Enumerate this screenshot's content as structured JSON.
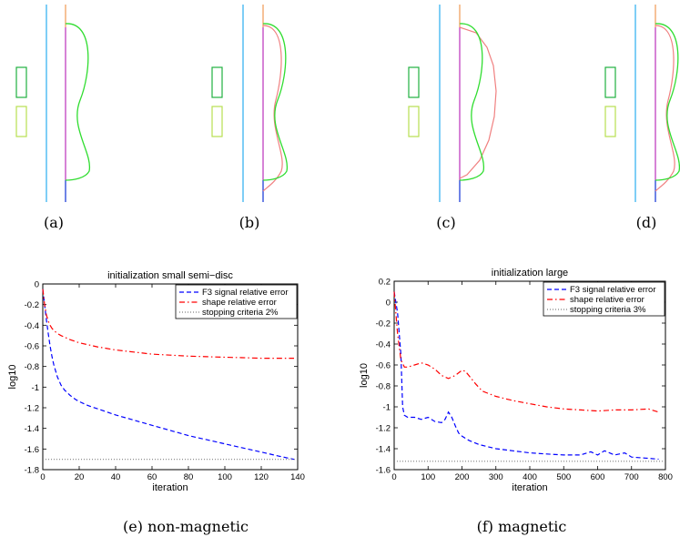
{
  "figure": {
    "panels": [
      {
        "caption": "(a)"
      },
      {
        "caption": "(b)"
      },
      {
        "caption": "(c)"
      },
      {
        "caption": "(d)"
      }
    ],
    "colors": {
      "bar": "#3ab3f0",
      "axis_top": "#f0a060",
      "axis_mid": "#c040c0",
      "axis_bottom": "#2040d8",
      "coil_dark": "#20b040",
      "coil_light": "#b8e050",
      "shape_green": "#30dd30",
      "shape_pink": "#f08080"
    }
  },
  "chart_data": [
    {
      "type": "line",
      "caption": "(e) non-magnetic",
      "title": "initialization small semi−disc",
      "xlabel": "iteration",
      "ylabel": "log10",
      "xlim": [
        0,
        140
      ],
      "ylim": [
        -1.8,
        0
      ],
      "xticks": [
        0,
        20,
        40,
        60,
        80,
        100,
        120,
        140
      ],
      "yticks": [
        0,
        -0.2,
        -0.4,
        -0.6,
        -0.8,
        -1,
        -1.2,
        -1.4,
        -1.6,
        -1.8
      ],
      "ytick_labels": [
        "0",
        "-0.2",
        "-0.4",
        "-0.6",
        "-0.8",
        "-1",
        "-1.2",
        "-1.4",
        "-1.6",
        "-1.8"
      ],
      "legend_position": "top-right",
      "series": [
        {
          "name": "F3 signal relative error",
          "color": "#0000ff",
          "dash": "dashed",
          "x": [
            0,
            1,
            2,
            3,
            4,
            5,
            6,
            8,
            10,
            12,
            15,
            18,
            20,
            25,
            30,
            40,
            50,
            60,
            70,
            80,
            90,
            100,
            110,
            120,
            130,
            138
          ],
          "y": [
            -0.05,
            -0.2,
            -0.35,
            -0.48,
            -0.6,
            -0.7,
            -0.78,
            -0.9,
            -0.98,
            -1.03,
            -1.08,
            -1.12,
            -1.14,
            -1.18,
            -1.21,
            -1.27,
            -1.32,
            -1.37,
            -1.42,
            -1.47,
            -1.51,
            -1.55,
            -1.59,
            -1.63,
            -1.67,
            -1.7
          ]
        },
        {
          "name": "shape relative error",
          "color": "#ff0000",
          "dash": "dashdot",
          "x": [
            0,
            1,
            2,
            3,
            4,
            5,
            6,
            8,
            10,
            15,
            20,
            30,
            40,
            50,
            60,
            70,
            80,
            90,
            100,
            110,
            120,
            130,
            138
          ],
          "y": [
            -0.05,
            -0.2,
            -0.3,
            -0.36,
            -0.4,
            -0.43,
            -0.45,
            -0.48,
            -0.5,
            -0.54,
            -0.57,
            -0.61,
            -0.64,
            -0.66,
            -0.68,
            -0.69,
            -0.7,
            -0.705,
            -0.71,
            -0.715,
            -0.72,
            -0.72,
            -0.72
          ]
        },
        {
          "name": "stopping criteria 2%",
          "color": "#808080",
          "dash": "dotted",
          "x": [
            0,
            140
          ],
          "y": [
            -1.7,
            -1.7
          ]
        }
      ]
    },
    {
      "type": "line",
      "caption": "(f) magnetic",
      "title": "initialization large",
      "xlabel": "iteration",
      "ylabel": "log10",
      "xlim": [
        0,
        800
      ],
      "ylim": [
        -1.6,
        0.2
      ],
      "xticks": [
        0,
        100,
        200,
        300,
        400,
        500,
        600,
        700,
        800
      ],
      "yticks": [
        0.2,
        0,
        -0.2,
        -0.4,
        -0.6,
        -0.8,
        -1,
        -1.2,
        -1.4,
        -1.6
      ],
      "ytick_labels": [
        "0.2",
        "0",
        "-0.2",
        "-0.4",
        "-0.6",
        "-0.8",
        "-1",
        "-1.2",
        "-1.4",
        "-1.6"
      ],
      "legend_position": "top-right",
      "series": [
        {
          "name": "F3 signal relative error",
          "color": "#0000ff",
          "dash": "dashed",
          "x": [
            0,
            10,
            20,
            25,
            30,
            40,
            60,
            80,
            100,
            120,
            140,
            150,
            160,
            170,
            180,
            190,
            200,
            220,
            250,
            300,
            350,
            400,
            450,
            500,
            550,
            580,
            600,
            620,
            650,
            680,
            700,
            740,
            780
          ],
          "y": [
            0.1,
            -0.1,
            -0.5,
            -1.0,
            -1.08,
            -1.1,
            -1.1,
            -1.12,
            -1.1,
            -1.14,
            -1.15,
            -1.12,
            -1.05,
            -1.1,
            -1.18,
            -1.25,
            -1.28,
            -1.32,
            -1.36,
            -1.4,
            -1.42,
            -1.44,
            -1.45,
            -1.46,
            -1.46,
            -1.43,
            -1.46,
            -1.42,
            -1.46,
            -1.44,
            -1.48,
            -1.49,
            -1.5
          ]
        },
        {
          "name": "shape relative error",
          "color": "#ff0000",
          "dash": "dashdot",
          "x": [
            0,
            10,
            20,
            30,
            40,
            60,
            80,
            100,
            120,
            140,
            160,
            180,
            200,
            210,
            220,
            240,
            260,
            300,
            350,
            400,
            450,
            500,
            550,
            600,
            650,
            700,
            750,
            780
          ],
          "y": [
            0.1,
            -0.3,
            -0.55,
            -0.62,
            -0.62,
            -0.6,
            -0.58,
            -0.6,
            -0.64,
            -0.7,
            -0.73,
            -0.7,
            -0.65,
            -0.66,
            -0.7,
            -0.78,
            -0.85,
            -0.9,
            -0.94,
            -0.97,
            -1.0,
            -1.02,
            -1.03,
            -1.04,
            -1.03,
            -1.03,
            -1.02,
            -1.05
          ]
        },
        {
          "name": "stopping criteria 3%",
          "color": "#808080",
          "dash": "dotted",
          "x": [
            0,
            800
          ],
          "y": [
            -1.52,
            -1.52
          ]
        }
      ]
    }
  ]
}
